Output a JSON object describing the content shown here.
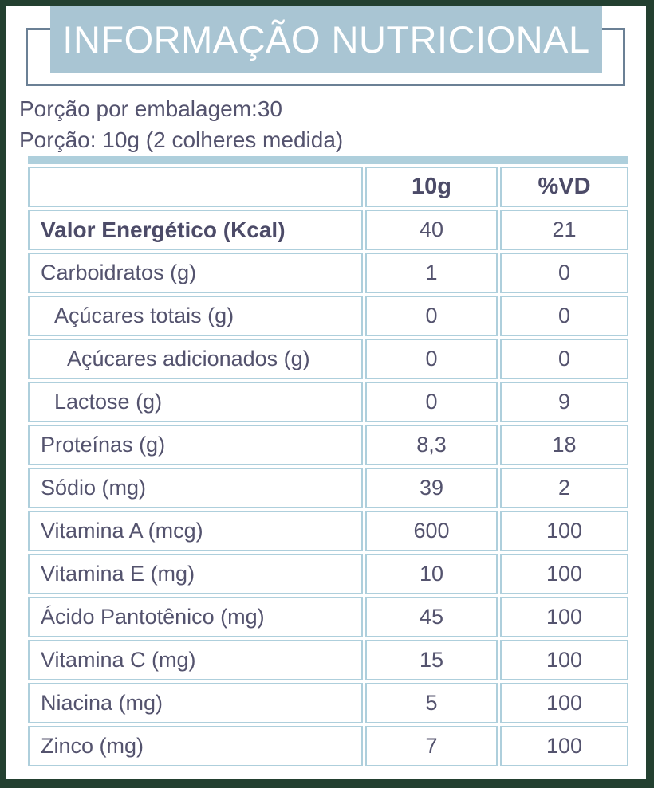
{
  "header": {
    "title": "INFORMAÇÃO NUTRICIONAL"
  },
  "serving": {
    "line1": "Porção por embalagem:30",
    "line2": "Porção: 10g (2 colheres medida)"
  },
  "table": {
    "columns": [
      "",
      "10g",
      "%VD"
    ],
    "rows": [
      {
        "label": "Valor Energético (Kcal)",
        "amount": "40",
        "dv": "21",
        "bold": true,
        "indent": 0
      },
      {
        "label": "Carboidratos (g)",
        "amount": "1",
        "dv": "0",
        "bold": false,
        "indent": 0
      },
      {
        "label": "Açúcares totais (g)",
        "amount": "0",
        "dv": "0",
        "bold": false,
        "indent": 1
      },
      {
        "label": "Açúcares adicionados (g)",
        "amount": "0",
        "dv": "0",
        "bold": false,
        "indent": 2
      },
      {
        "label": "Lactose (g)",
        "amount": "0",
        "dv": "9",
        "bold": false,
        "indent": 1
      },
      {
        "label": "Proteínas (g)",
        "amount": "8,3",
        "dv": "18",
        "bold": false,
        "indent": 0
      },
      {
        "label": "Sódio (mg)",
        "amount": "39",
        "dv": "2",
        "bold": false,
        "indent": 0
      },
      {
        "label": "Vitamina A (mcg)",
        "amount": "600",
        "dv": "100",
        "bold": false,
        "indent": 0
      },
      {
        "label": "Vitamina E (mg)",
        "amount": "10",
        "dv": "100",
        "bold": false,
        "indent": 0
      },
      {
        "label": "Ácido Pantotênico (mg)",
        "amount": "45",
        "dv": "100",
        "bold": false,
        "indent": 0
      },
      {
        "label": "Vitamina C (mg)",
        "amount": "15",
        "dv": "100",
        "bold": false,
        "indent": 0
      },
      {
        "label": "Niacina (mg)",
        "amount": "5",
        "dv": "100",
        "bold": false,
        "indent": 0
      },
      {
        "label": "Zinco (mg)",
        "amount": "7",
        "dv": "100",
        "bold": false,
        "indent": 0
      }
    ]
  },
  "colors": {
    "frame": "#234030",
    "banner": "#a9c5d3",
    "outline": "#6b8095",
    "table_border": "#aecfdc",
    "text": "#54536e",
    "text_bold": "#4c4b68",
    "title": "#ffffff",
    "background": "#ffffff"
  }
}
